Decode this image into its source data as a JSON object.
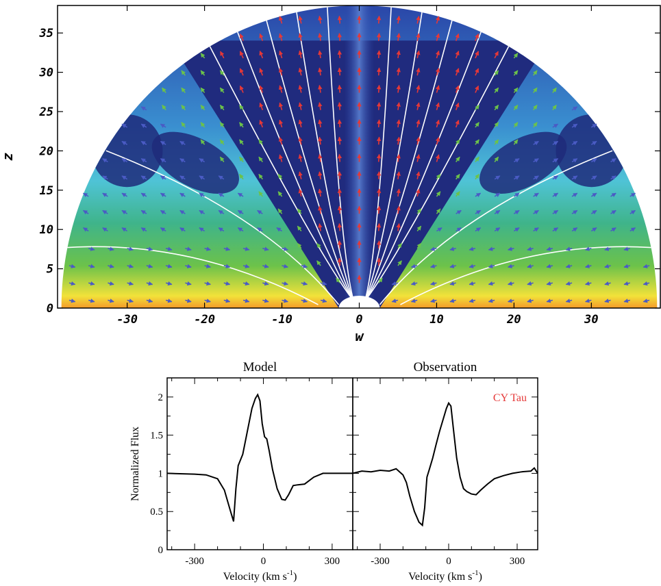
{
  "chart_data": [
    {
      "type": "heatmap",
      "xlabel": "w",
      "ylabel": "z",
      "xlim": [
        -39,
        39
      ],
      "ylim": [
        0,
        38.5
      ],
      "x_ticks": [
        "-30",
        "-20",
        "-10",
        "0",
        "10",
        "20",
        "30"
      ],
      "x_tick_values": [
        -30,
        -20,
        -10,
        0,
        10,
        20,
        30
      ],
      "y_ticks": [
        "0",
        "5",
        "10",
        "15",
        "20",
        "25",
        "30",
        "35"
      ],
      "y_tick_values": [
        0,
        5,
        10,
        15,
        20,
        25,
        30,
        35
      ],
      "domain_radius": 38.5,
      "colormap": [
        "#1e2a7a",
        "#2a46a8",
        "#3a8fd0",
        "#4fc3d6",
        "#3fb48a",
        "#6cc24a",
        "#f2e23a",
        "#f39a2a",
        "#e2442a"
      ],
      "arrow_colors": {
        "slow": "#4a5bc4",
        "medium": "#6cc24a",
        "fast": "#e53838"
      }
    },
    {
      "type": "line",
      "title": "Model",
      "xlabel": "Velocity (km s",
      "xlabel_sup": "-1",
      "xlabel_close": ")",
      "ylabel": "Normalized Flux",
      "xlim": [
        -420,
        390
      ],
      "ylim": [
        0,
        2.25
      ],
      "x_ticks": [
        "-300",
        "0",
        "300"
      ],
      "x_tick_values": [
        -300,
        0,
        300
      ],
      "y_ticks": [
        "0",
        "0.5",
        "1",
        "1.5",
        "2"
      ],
      "y_tick_values": [
        0,
        0.5,
        1,
        1.5,
        2
      ],
      "series": [
        {
          "x": [
            -420,
            -300,
            -250,
            -200,
            -170,
            -145,
            -130,
            -120,
            -110,
            -90,
            -70,
            -50,
            -35,
            -25,
            -15,
            -5,
            5,
            15,
            25,
            40,
            60,
            80,
            95,
            110,
            130,
            150,
            180,
            220,
            260,
            300,
            390
          ],
          "y": [
            1.0,
            0.99,
            0.98,
            0.93,
            0.78,
            0.52,
            0.37,
            0.8,
            1.1,
            1.25,
            1.55,
            1.85,
            1.98,
            2.03,
            1.95,
            1.65,
            1.48,
            1.45,
            1.3,
            1.05,
            0.8,
            0.66,
            0.65,
            0.72,
            0.84,
            0.85,
            0.86,
            0.95,
            1.0,
            1.0,
            1.0
          ]
        }
      ]
    },
    {
      "type": "line",
      "title": "Observation",
      "annotation": "CY Tau",
      "xlabel": "Velocity (km s",
      "xlabel_sup": "-1",
      "xlabel_close": ")",
      "xlim": [
        -420,
        390
      ],
      "ylim": [
        0,
        2.25
      ],
      "x_ticks": [
        "-300",
        "0",
        "300"
      ],
      "x_tick_values": [
        -300,
        0,
        300
      ],
      "series": [
        {
          "x": [
            -420,
            -380,
            -340,
            -300,
            -260,
            -230,
            -200,
            -185,
            -170,
            -150,
            -130,
            -115,
            -105,
            -95,
            -85,
            -70,
            -55,
            -40,
            -25,
            -10,
            0,
            10,
            20,
            35,
            50,
            65,
            80,
            100,
            120,
            140,
            170,
            200,
            240,
            280,
            320,
            360,
            375,
            390
          ],
          "y": [
            1.0,
            1.03,
            1.02,
            1.04,
            1.03,
            1.06,
            0.98,
            0.88,
            0.7,
            0.5,
            0.36,
            0.32,
            0.55,
            0.95,
            1.05,
            1.2,
            1.38,
            1.55,
            1.7,
            1.85,
            1.92,
            1.88,
            1.6,
            1.2,
            0.95,
            0.8,
            0.76,
            0.73,
            0.72,
            0.78,
            0.86,
            0.93,
            0.97,
            1.0,
            1.02,
            1.03,
            1.07,
            1.0
          ]
        }
      ]
    }
  ]
}
